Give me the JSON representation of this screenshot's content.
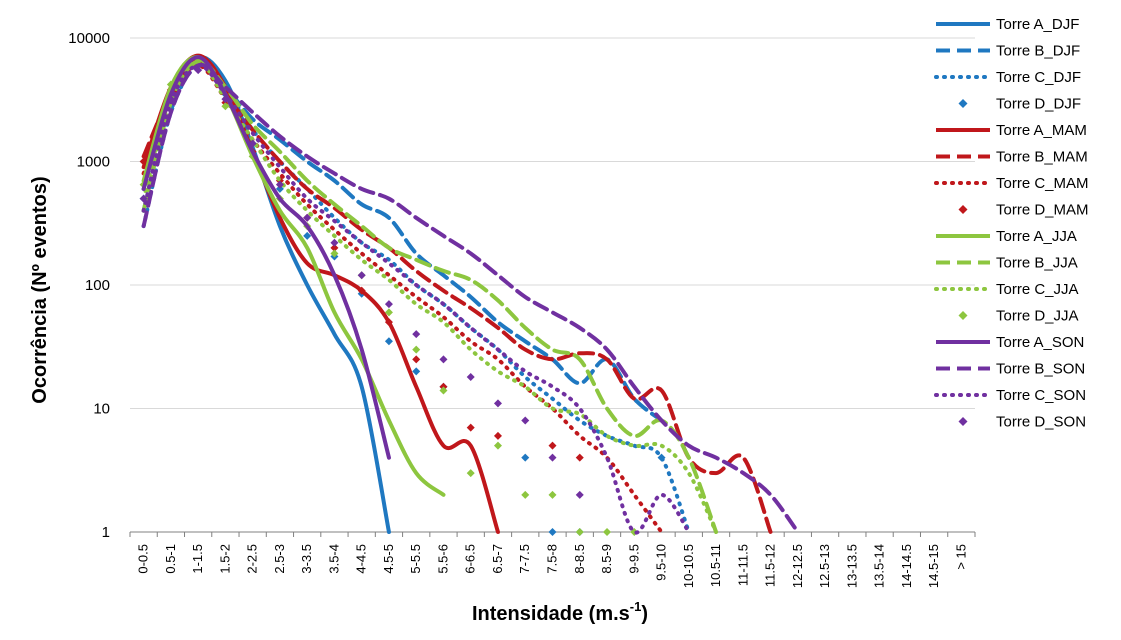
{
  "chart_data": {
    "type": "line",
    "title": "",
    "xlabel": "Intensidade (m.s",
    "xlabel_superscript": "-1",
    "xlabel_close": ")",
    "ylabel": "Ocorrência (Nº eventos)",
    "yscale": "log",
    "ylim": [
      1,
      10000
    ],
    "yticks": [
      "1",
      "10",
      "100",
      "1000",
      "10000"
    ],
    "grid": "horizontal",
    "legend_position": "right",
    "categories": [
      "0-0.5",
      "0.5-1",
      "1-1.5",
      "1.5-2",
      "2-2.5",
      "2.5-3",
      "3-3.5",
      "3.5-4",
      "4-4.5",
      "4.5-5",
      "5-5.5",
      "5.5-6",
      "6-6.5",
      "6.5-7",
      "7-7.5",
      "7.5-8",
      "8-8.5",
      "8.5-9",
      "9-9.5",
      "9.5-10",
      "10-10.5",
      "10.5-11",
      "11-11.5",
      "11.5-12",
      "12-12.5",
      "12.5-13",
      "13-13.5",
      "13.5-14",
      "14-14.5",
      "14.5-15",
      "> 15"
    ],
    "series": [
      {
        "name": "Torre A_DJF",
        "color": "#1f78c1",
        "style": "solid",
        "values": [
          600,
          3500,
          7000,
          4500,
          1300,
          300,
          100,
          40,
          15,
          1,
          null,
          null,
          null,
          null,
          null,
          null,
          null,
          null,
          null,
          null,
          null,
          null,
          null,
          null,
          null,
          null,
          null,
          null,
          null,
          null,
          null
        ]
      },
      {
        "name": "Torre B_DJF",
        "color": "#1f78c1",
        "style": "dashed",
        "values": [
          400,
          3000,
          6500,
          4000,
          2200,
          1500,
          1000,
          700,
          450,
          350,
          180,
          120,
          80,
          50,
          35,
          25,
          16,
          25,
          12,
          8,
          null,
          null,
          null,
          null,
          null,
          null,
          null,
          null,
          null,
          null,
          null
        ]
      },
      {
        "name": "Torre C_DJF",
        "color": "#1f78c1",
        "style": "dotted",
        "values": [
          300,
          2500,
          6000,
          4000,
          1800,
          1000,
          600,
          350,
          220,
          160,
          100,
          70,
          45,
          30,
          18,
          12,
          8,
          6,
          5,
          4,
          1,
          null,
          null,
          null,
          null,
          null,
          null,
          null,
          null,
          null,
          null
        ]
      },
      {
        "name": "Torre D_DJF",
        "color": "#1f78c1",
        "style": "markers",
        "values": [
          500,
          2800,
          6000,
          3500,
          1400,
          600,
          250,
          170,
          85,
          35,
          20,
          15,
          null,
          null,
          4,
          1,
          1,
          null,
          null,
          4,
          null,
          null,
          null,
          null,
          null,
          null,
          null,
          null,
          null,
          null,
          null
        ]
      },
      {
        "name": "Torre A_MAM",
        "color": "#c0171b",
        "style": "solid",
        "values": [
          900,
          4000,
          7200,
          4000,
          1200,
          350,
          150,
          120,
          90,
          50,
          15,
          5,
          5,
          1,
          null,
          null,
          null,
          null,
          null,
          null,
          null,
          null,
          null,
          null,
          null,
          null,
          null,
          null,
          null,
          null,
          null
        ]
      },
      {
        "name": "Torre B_MAM",
        "color": "#c0171b",
        "style": "dashed",
        "values": [
          1100,
          3500,
          6500,
          3500,
          1800,
          1000,
          600,
          420,
          280,
          200,
          130,
          90,
          65,
          45,
          30,
          25,
          28,
          25,
          12,
          14,
          4,
          3,
          4,
          1,
          null,
          null,
          null,
          null,
          null,
          null,
          null
        ]
      },
      {
        "name": "Torre C_MAM",
        "color": "#c0171b",
        "style": "dotted",
        "values": [
          800,
          3200,
          6000,
          3200,
          1500,
          800,
          450,
          280,
          180,
          120,
          80,
          55,
          35,
          25,
          15,
          10,
          6,
          4,
          2,
          1,
          null,
          null,
          null,
          null,
          null,
          null,
          null,
          null,
          null,
          null,
          null
        ]
      },
      {
        "name": "Torre D_MAM",
        "color": "#c0171b",
        "style": "markers",
        "values": [
          1000,
          3800,
          6500,
          3000,
          1200,
          700,
          350,
          200,
          90,
          50,
          25,
          15,
          7,
          6,
          null,
          5,
          4,
          null,
          null,
          null,
          null,
          null,
          null,
          null,
          null,
          null,
          null,
          null,
          null,
          null,
          null
        ]
      },
      {
        "name": "Torre A_JJA",
        "color": "#8dc63f",
        "style": "solid",
        "values": [
          700,
          4000,
          7000,
          3500,
          1100,
          400,
          200,
          60,
          25,
          8,
          3,
          2,
          null,
          null,
          null,
          null,
          null,
          null,
          null,
          null,
          null,
          null,
          null,
          null,
          null,
          null,
          null,
          null,
          null,
          null,
          null
        ]
      },
      {
        "name": "Torre B_JJA",
        "color": "#8dc63f",
        "style": "dashed",
        "values": [
          400,
          3000,
          6500,
          4000,
          2000,
          1200,
          700,
          450,
          300,
          200,
          160,
          130,
          110,
          75,
          45,
          30,
          25,
          10,
          6,
          8,
          4,
          1,
          null,
          null,
          null,
          null,
          null,
          null,
          null,
          null,
          null
        ]
      },
      {
        "name": "Torre C_JJA",
        "color": "#8dc63f",
        "style": "dotted",
        "values": [
          500,
          3500,
          6500,
          3200,
          1500,
          700,
          400,
          250,
          160,
          110,
          70,
          50,
          30,
          20,
          15,
          10,
          9,
          6,
          5,
          5,
          3,
          1,
          null,
          null,
          null,
          null,
          null,
          null,
          null,
          null,
          null
        ]
      },
      {
        "name": "Torre D_JJA",
        "color": "#8dc63f",
        "style": "markers",
        "values": [
          650,
          4200,
          6500,
          2800,
          1100,
          500,
          300,
          180,
          120,
          60,
          30,
          14,
          3,
          5,
          2,
          2,
          1,
          1,
          1,
          null,
          null,
          null,
          null,
          null,
          null,
          null,
          null,
          null,
          null,
          null,
          null
        ]
      },
      {
        "name": "Torre A_SON",
        "color": "#7030a0",
        "style": "solid",
        "values": [
          600,
          3500,
          7000,
          3500,
          1200,
          500,
          300,
          120,
          30,
          4,
          null,
          null,
          null,
          null,
          null,
          null,
          null,
          null,
          null,
          null,
          null,
          null,
          null,
          null,
          null,
          null,
          null,
          null,
          null,
          null,
          null
        ]
      },
      {
        "name": "Torre B_SON",
        "color": "#7030a0",
        "style": "dashed",
        "values": [
          300,
          2500,
          6000,
          4000,
          2500,
          1600,
          1100,
          800,
          600,
          500,
          350,
          250,
          180,
          120,
          80,
          60,
          45,
          30,
          15,
          8,
          5,
          4,
          3,
          2,
          1,
          null,
          null,
          null,
          null,
          null,
          null
        ]
      },
      {
        "name": "Torre C_SON",
        "color": "#7030a0",
        "style": "dotted",
        "values": [
          400,
          3000,
          6000,
          3500,
          1700,
          900,
          500,
          330,
          220,
          150,
          100,
          70,
          45,
          30,
          20,
          15,
          10,
          4,
          1,
          2,
          1,
          null,
          null,
          null,
          null,
          null,
          null,
          null,
          null,
          null,
          null
        ]
      },
      {
        "name": "Torre D_SON",
        "color": "#7030a0",
        "style": "markers",
        "values": [
          500,
          3200,
          5500,
          3200,
          1400,
          650,
          350,
          220,
          120,
          70,
          40,
          25,
          18,
          11,
          8,
          4,
          2,
          null,
          null,
          null,
          null,
          null,
          null,
          null,
          null,
          null,
          null,
          null,
          null,
          null,
          null
        ]
      }
    ]
  }
}
